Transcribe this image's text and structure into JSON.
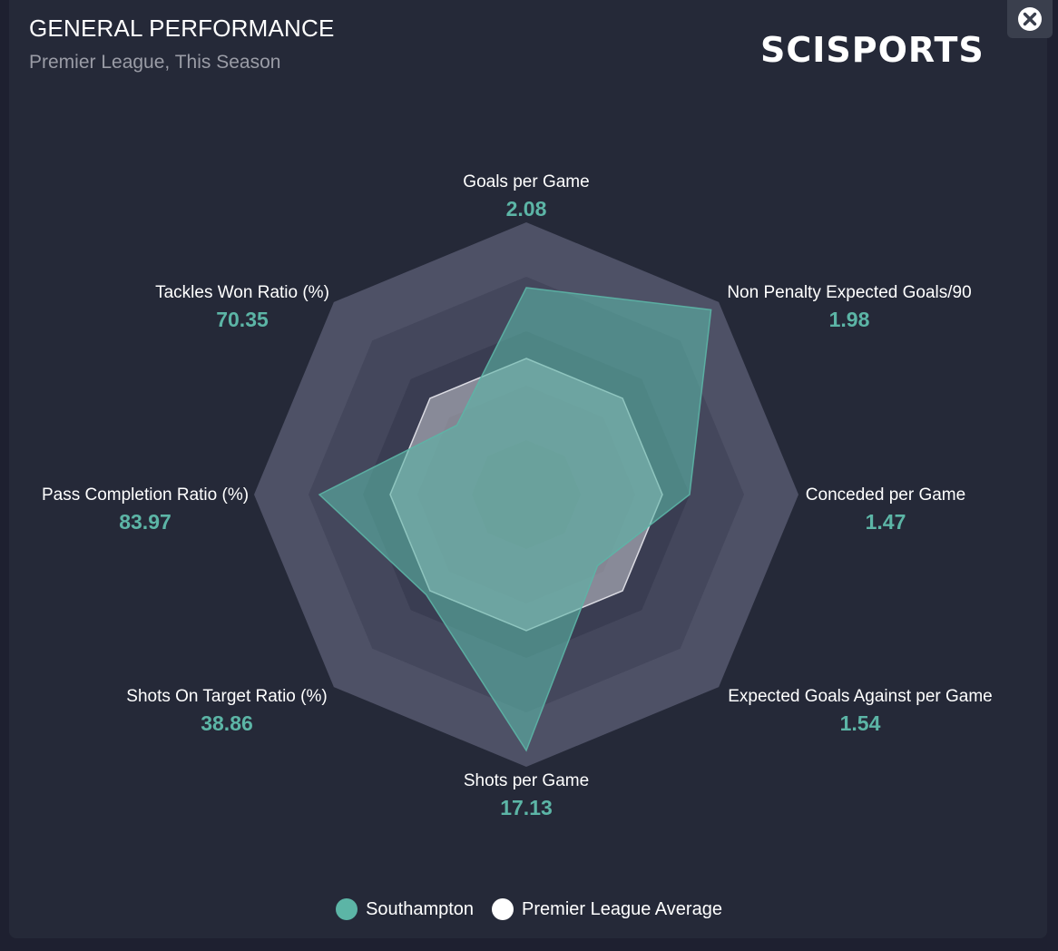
{
  "header": {
    "title": "GENERAL PERFORMANCE",
    "subtitle": "Premier League, This Season",
    "logo_text": "SCISPORTS"
  },
  "close_icon": "close-icon",
  "colors": {
    "team": "#5cb5a6",
    "average": "#e8e8ee",
    "background": "#252938",
    "value_text": "#5cb5a6"
  },
  "chart_data": {
    "type": "radar",
    "title": "GENERAL PERFORMANCE",
    "subtitle": "Premier League, This Season",
    "axes": [
      {
        "label": "Goals per Game",
        "value": "2.08"
      },
      {
        "label": "Non Penalty Expected Goals/90",
        "value": "1.98"
      },
      {
        "label": "Conceded per Game",
        "value": "1.47"
      },
      {
        "label": "Expected Goals Against per Game",
        "value": "1.54"
      },
      {
        "label": "Shots per Game",
        "value": "17.13"
      },
      {
        "label": "Shots On Target Ratio (%)",
        "value": "38.86"
      },
      {
        "label": "Pass Completion Ratio (%)",
        "value": "83.97"
      },
      {
        "label": "Tackles Won Ratio (%)",
        "value": "70.35"
      }
    ],
    "series": [
      {
        "name": "Southampton",
        "color": "#5cb5a6",
        "values": [
          0.76,
          0.96,
          0.6,
          0.37,
          0.94,
          0.52,
          0.76,
          0.36
        ]
      },
      {
        "name": "Premier League Average",
        "color": "#e8e8ee",
        "values": [
          0.5,
          0.5,
          0.5,
          0.5,
          0.5,
          0.5,
          0.5,
          0.5
        ]
      }
    ],
    "rings": 5,
    "range": [
      0,
      1
    ],
    "legend_position": "bottom"
  },
  "legend": [
    {
      "name": "Southampton"
    },
    {
      "name": "Premier League Average"
    }
  ]
}
